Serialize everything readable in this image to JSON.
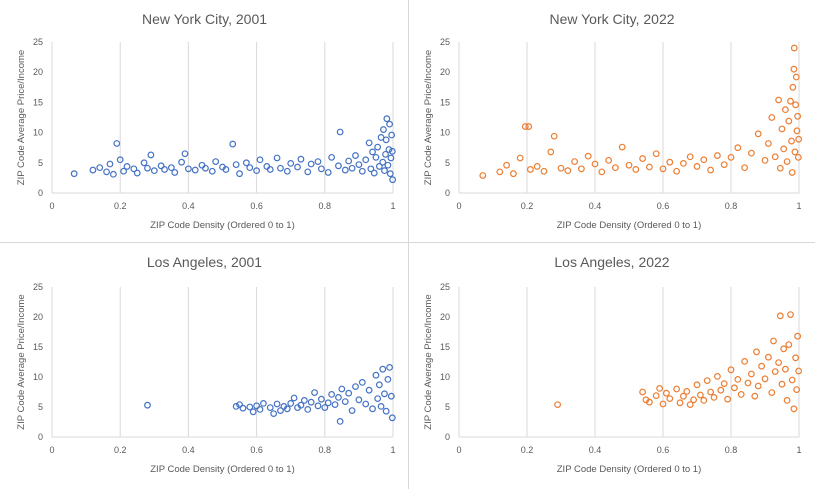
{
  "chart_data": [
    {
      "type": "scatter",
      "title": "New York City, 2001",
      "xlabel": "ZIP Code Density (Ordered 0 to 1)",
      "ylabel": "ZIP Code Average Price/Income",
      "xlim": [
        0,
        1
      ],
      "ylim": [
        0,
        25
      ],
      "xticks": [
        "0",
        "0.2",
        "0.4",
        "0.6",
        "0.8",
        "1"
      ],
      "yticks": [
        "0",
        "5",
        "10",
        "15",
        "20",
        "25"
      ],
      "grid": "vertical",
      "color": "#4472C4",
      "points": [
        [
          0.065,
          3.2
        ],
        [
          0.12,
          3.8
        ],
        [
          0.14,
          4.2
        ],
        [
          0.16,
          3.5
        ],
        [
          0.17,
          4.8
        ],
        [
          0.18,
          3.1
        ],
        [
          0.19,
          8.2
        ],
        [
          0.2,
          5.5
        ],
        [
          0.21,
          3.6
        ],
        [
          0.22,
          4.4
        ],
        [
          0.24,
          4.0
        ],
        [
          0.25,
          3.3
        ],
        [
          0.27,
          5.0
        ],
        [
          0.28,
          4.1
        ],
        [
          0.29,
          6.3
        ],
        [
          0.3,
          3.7
        ],
        [
          0.32,
          4.5
        ],
        [
          0.33,
          3.9
        ],
        [
          0.35,
          4.2
        ],
        [
          0.36,
          3.4
        ],
        [
          0.38,
          5.1
        ],
        [
          0.39,
          6.5
        ],
        [
          0.4,
          4.0
        ],
        [
          0.42,
          3.8
        ],
        [
          0.44,
          4.6
        ],
        [
          0.45,
          4.1
        ],
        [
          0.47,
          3.6
        ],
        [
          0.48,
          5.2
        ],
        [
          0.5,
          4.3
        ],
        [
          0.51,
          3.9
        ],
        [
          0.53,
          8.1
        ],
        [
          0.54,
          4.7
        ],
        [
          0.55,
          3.2
        ],
        [
          0.57,
          5.0
        ],
        [
          0.58,
          4.2
        ],
        [
          0.6,
          3.7
        ],
        [
          0.61,
          5.5
        ],
        [
          0.63,
          4.4
        ],
        [
          0.64,
          3.9
        ],
        [
          0.66,
          5.8
        ],
        [
          0.67,
          4.1
        ],
        [
          0.69,
          3.6
        ],
        [
          0.7,
          4.9
        ],
        [
          0.72,
          4.3
        ],
        [
          0.73,
          5.6
        ],
        [
          0.75,
          3.5
        ],
        [
          0.76,
          4.8
        ],
        [
          0.78,
          5.2
        ],
        [
          0.79,
          4.0
        ],
        [
          0.81,
          3.4
        ],
        [
          0.82,
          5.9
        ],
        [
          0.84,
          4.5
        ],
        [
          0.845,
          10.1
        ],
        [
          0.86,
          3.8
        ],
        [
          0.87,
          5.3
        ],
        [
          0.88,
          4.1
        ],
        [
          0.89,
          6.2
        ],
        [
          0.9,
          4.7
        ],
        [
          0.91,
          3.6
        ],
        [
          0.92,
          5.5
        ],
        [
          0.93,
          8.3
        ],
        [
          0.935,
          4.0
        ],
        [
          0.94,
          6.8
        ],
        [
          0.945,
          3.3
        ],
        [
          0.95,
          5.9
        ],
        [
          0.955,
          7.6
        ],
        [
          0.96,
          4.4
        ],
        [
          0.965,
          9.2
        ],
        [
          0.97,
          5.1
        ],
        [
          0.972,
          10.5
        ],
        [
          0.975,
          3.7
        ],
        [
          0.978,
          6.4
        ],
        [
          0.98,
          8.8
        ],
        [
          0.982,
          12.3
        ],
        [
          0.985,
          4.6
        ],
        [
          0.988,
          7.2
        ],
        [
          0.99,
          11.4
        ],
        [
          0.992,
          3.2
        ],
        [
          0.994,
          5.8
        ],
        [
          0.996,
          9.6
        ],
        [
          0.998,
          6.9
        ],
        [
          0.999,
          2.2
        ]
      ]
    },
    {
      "type": "scatter",
      "title": "New York City, 2022",
      "xlabel": "ZIP Code Density (Ordered 0 to 1)",
      "ylabel": "ZIP Code Average Price/Income",
      "xlim": [
        0,
        1
      ],
      "ylim": [
        0,
        25
      ],
      "xticks": [
        "0",
        "0.2",
        "0.4",
        "0.6",
        "0.8",
        "1"
      ],
      "yticks": [
        "0",
        "5",
        "10",
        "15",
        "20",
        "25"
      ],
      "grid": "vertical",
      "color": "#ED7D31",
      "points": [
        [
          0.07,
          2.9
        ],
        [
          0.12,
          3.5
        ],
        [
          0.14,
          4.6
        ],
        [
          0.16,
          3.2
        ],
        [
          0.18,
          5.8
        ],
        [
          0.195,
          11.0
        ],
        [
          0.205,
          11.0
        ],
        [
          0.21,
          3.9
        ],
        [
          0.23,
          4.4
        ],
        [
          0.25,
          3.6
        ],
        [
          0.27,
          6.8
        ],
        [
          0.28,
          9.4
        ],
        [
          0.3,
          4.1
        ],
        [
          0.32,
          3.7
        ],
        [
          0.34,
          5.2
        ],
        [
          0.36,
          4.0
        ],
        [
          0.38,
          6.1
        ],
        [
          0.4,
          4.8
        ],
        [
          0.42,
          3.5
        ],
        [
          0.44,
          5.4
        ],
        [
          0.46,
          4.2
        ],
        [
          0.48,
          7.6
        ],
        [
          0.5,
          4.6
        ],
        [
          0.52,
          3.9
        ],
        [
          0.54,
          5.7
        ],
        [
          0.56,
          4.3
        ],
        [
          0.58,
          6.5
        ],
        [
          0.6,
          4.0
        ],
        [
          0.62,
          5.1
        ],
        [
          0.64,
          3.6
        ],
        [
          0.66,
          4.9
        ],
        [
          0.68,
          6.0
        ],
        [
          0.7,
          4.4
        ],
        [
          0.72,
          5.5
        ],
        [
          0.74,
          3.8
        ],
        [
          0.76,
          6.2
        ],
        [
          0.78,
          4.7
        ],
        [
          0.8,
          5.9
        ],
        [
          0.82,
          7.5
        ],
        [
          0.84,
          4.2
        ],
        [
          0.86,
          6.6
        ],
        [
          0.88,
          9.8
        ],
        [
          0.9,
          5.4
        ],
        [
          0.91,
          8.2
        ],
        [
          0.92,
          12.5
        ],
        [
          0.93,
          6.0
        ],
        [
          0.94,
          15.4
        ],
        [
          0.945,
          4.1
        ],
        [
          0.95,
          10.6
        ],
        [
          0.955,
          7.3
        ],
        [
          0.96,
          13.8
        ],
        [
          0.965,
          5.2
        ],
        [
          0.97,
          11.9
        ],
        [
          0.975,
          15.2
        ],
        [
          0.978,
          8.6
        ],
        [
          0.98,
          3.4
        ],
        [
          0.982,
          17.5
        ],
        [
          0.985,
          20.5
        ],
        [
          0.988,
          6.8
        ],
        [
          0.99,
          14.6
        ],
        [
          0.992,
          19.2
        ],
        [
          0.994,
          10.3
        ],
        [
          0.996,
          12.7
        ],
        [
          0.998,
          5.9
        ],
        [
          0.999,
          8.9
        ],
        [
          0.986,
          24.0
        ]
      ]
    },
    {
      "type": "scatter",
      "title": "Los Angeles, 2001",
      "xlabel": "ZIP Code Density (Ordered 0 to 1)",
      "ylabel": "ZIP Code Average Price/Income",
      "xlim": [
        0,
        1
      ],
      "ylim": [
        0,
        25
      ],
      "xticks": [
        "0",
        "0.2",
        "0.4",
        "0.6",
        "0.8",
        "1"
      ],
      "yticks": [
        "0",
        "5",
        "10",
        "15",
        "20",
        "25"
      ],
      "grid": "vertical",
      "color": "#4472C4",
      "points": [
        [
          0.28,
          5.3
        ],
        [
          0.54,
          5.1
        ],
        [
          0.55,
          5.4
        ],
        [
          0.56,
          4.8
        ],
        [
          0.58,
          5.0
        ],
        [
          0.59,
          4.2
        ],
        [
          0.6,
          5.2
        ],
        [
          0.61,
          4.6
        ],
        [
          0.62,
          5.6
        ],
        [
          0.64,
          4.9
        ],
        [
          0.65,
          3.9
        ],
        [
          0.66,
          5.5
        ],
        [
          0.67,
          4.4
        ],
        [
          0.68,
          5.1
        ],
        [
          0.69,
          4.7
        ],
        [
          0.7,
          5.6
        ],
        [
          0.71,
          6.5
        ],
        [
          0.72,
          4.9
        ],
        [
          0.73,
          5.3
        ],
        [
          0.74,
          6.1
        ],
        [
          0.75,
          4.6
        ],
        [
          0.76,
          5.8
        ],
        [
          0.77,
          7.4
        ],
        [
          0.78,
          5.2
        ],
        [
          0.79,
          6.3
        ],
        [
          0.8,
          4.9
        ],
        [
          0.81,
          5.7
        ],
        [
          0.82,
          7.1
        ],
        [
          0.83,
          5.4
        ],
        [
          0.84,
          6.6
        ],
        [
          0.845,
          2.6
        ],
        [
          0.85,
          8.0
        ],
        [
          0.86,
          5.9
        ],
        [
          0.87,
          7.3
        ],
        [
          0.88,
          4.4
        ],
        [
          0.89,
          8.4
        ],
        [
          0.9,
          6.2
        ],
        [
          0.91,
          9.1
        ],
        [
          0.92,
          5.5
        ],
        [
          0.93,
          7.8
        ],
        [
          0.94,
          4.7
        ],
        [
          0.95,
          10.3
        ],
        [
          0.955,
          6.4
        ],
        [
          0.96,
          8.7
        ],
        [
          0.965,
          5.1
        ],
        [
          0.97,
          11.3
        ],
        [
          0.975,
          7.2
        ],
        [
          0.98,
          4.3
        ],
        [
          0.985,
          9.6
        ],
        [
          0.99,
          11.6
        ],
        [
          0.995,
          6.8
        ],
        [
          0.998,
          3.2
        ]
      ]
    },
    {
      "type": "scatter",
      "title": "Los Angeles, 2022",
      "xlabel": "ZIP Code Density (Ordered 0 to 1)",
      "ylabel": "ZIP Code Average Price/Income",
      "xlim": [
        0,
        1
      ],
      "ylim": [
        0,
        25
      ],
      "xticks": [
        "0",
        "0.2",
        "0.4",
        "0.6",
        "0.8",
        "1"
      ],
      "yticks": [
        "0",
        "5",
        "10",
        "15",
        "20",
        "25"
      ],
      "grid": "vertical",
      "color": "#ED7D31",
      "points": [
        [
          0.29,
          5.4
        ],
        [
          0.54,
          7.5
        ],
        [
          0.55,
          6.2
        ],
        [
          0.56,
          5.8
        ],
        [
          0.58,
          6.9
        ],
        [
          0.59,
          8.1
        ],
        [
          0.6,
          5.5
        ],
        [
          0.61,
          7.3
        ],
        [
          0.62,
          6.4
        ],
        [
          0.64,
          8.0
        ],
        [
          0.65,
          5.7
        ],
        [
          0.66,
          6.8
        ],
        [
          0.67,
          7.6
        ],
        [
          0.68,
          5.4
        ],
        [
          0.69,
          6.2
        ],
        [
          0.7,
          8.7
        ],
        [
          0.71,
          7.0
        ],
        [
          0.72,
          6.1
        ],
        [
          0.73,
          9.4
        ],
        [
          0.74,
          7.5
        ],
        [
          0.75,
          6.6
        ],
        [
          0.76,
          10.1
        ],
        [
          0.77,
          7.8
        ],
        [
          0.78,
          8.9
        ],
        [
          0.79,
          6.3
        ],
        [
          0.8,
          11.2
        ],
        [
          0.81,
          8.2
        ],
        [
          0.82,
          9.6
        ],
        [
          0.83,
          7.1
        ],
        [
          0.84,
          12.6
        ],
        [
          0.85,
          9.0
        ],
        [
          0.86,
          10.5
        ],
        [
          0.87,
          6.8
        ],
        [
          0.875,
          14.2
        ],
        [
          0.88,
          8.5
        ],
        [
          0.89,
          11.8
        ],
        [
          0.9,
          9.7
        ],
        [
          0.91,
          13.3
        ],
        [
          0.92,
          7.4
        ],
        [
          0.925,
          16.0
        ],
        [
          0.93,
          10.9
        ],
        [
          0.94,
          12.4
        ],
        [
          0.945,
          20.2
        ],
        [
          0.95,
          8.8
        ],
        [
          0.955,
          14.7
        ],
        [
          0.96,
          11.3
        ],
        [
          0.965,
          6.1
        ],
        [
          0.97,
          15.4
        ],
        [
          0.975,
          20.4
        ],
        [
          0.98,
          9.5
        ],
        [
          0.985,
          4.7
        ],
        [
          0.99,
          13.2
        ],
        [
          0.993,
          7.9
        ],
        [
          0.996,
          16.8
        ],
        [
          0.999,
          11.0
        ]
      ]
    }
  ]
}
